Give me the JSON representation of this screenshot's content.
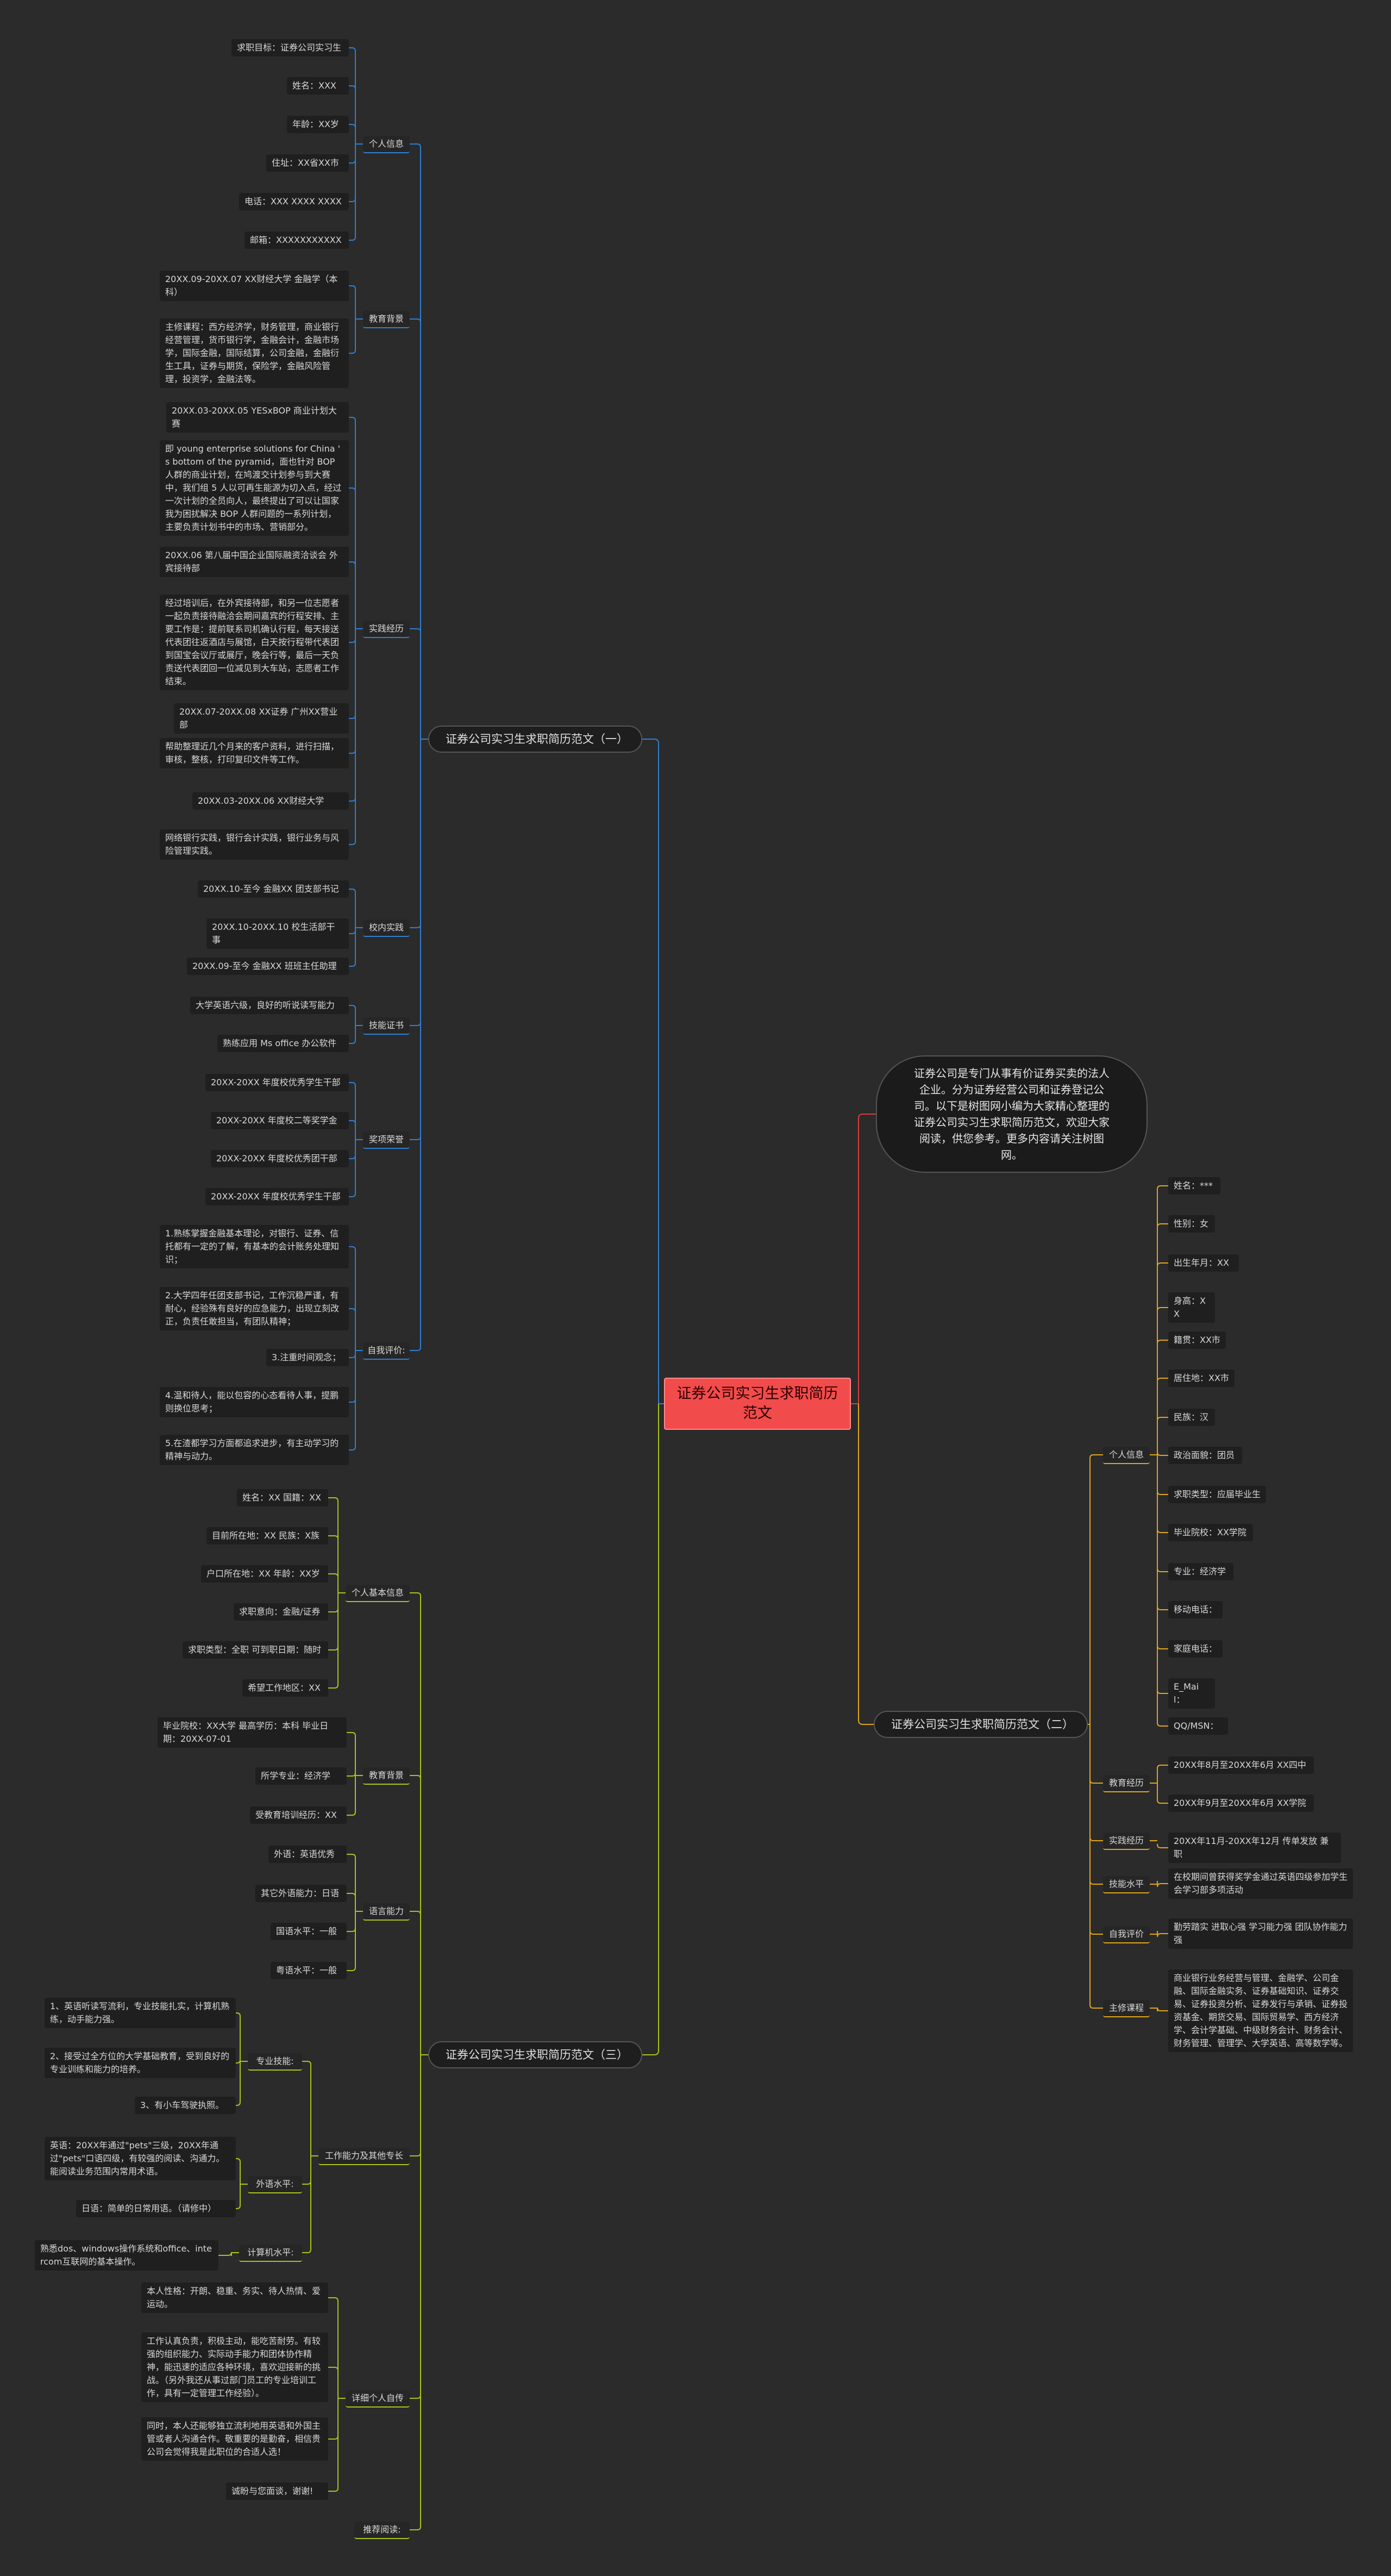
{
  "root": {
    "title": "证券公司实习生求职简历范文"
  },
  "intro": {
    "text": "证券公司是专门从事有价证券买卖的法人企业。分为证券经营公司和证券登记公司。以下是树图网小编为大家精心整理的证券公司实习生求职简历范文，欢迎大家阅读，供您参考。更多内容请关注树图网。"
  },
  "branches": {
    "b1": "证券公司实习生求职简历范文（一）",
    "b2": "证券公司实习生求职简历范文（二）",
    "b3": "证券公司实习生求职简历范文（三）"
  },
  "b1": {
    "personal": {
      "label": "个人信息",
      "items": [
        "求职目标：证券公司实习生",
        "姓名：XXX",
        "年龄：XX岁",
        "住址：XX省XX市",
        "电话：XXX XXXX XXXX",
        "邮箱：XXXXXXXXXXX"
      ]
    },
    "education": {
      "label": "教育背景",
      "items": [
        "20XX.09-20XX.07 XX财经大学 金融学（本科）",
        "主修课程：西方经济学，财务管理，商业银行经营管理，货币银行学，金融会计，金融市场学，国际金融，国际结算，公司金融，金融衍生工具，证券与期货，保险学，金融风险管理，投资学，金融法等。"
      ]
    },
    "practice": {
      "label": "实践经历",
      "items": [
        "20XX.03-20XX.05 YESxBOP 商业计划大赛",
        "即 young enterprise solutions for China ' s bottom of the pyramid，面也针对 BOP 人群的商业计划，在鸠渡交计划参与到大赛中，我们组 5 人以可再生能源为切入点，经过一次计划的全员向人，最终提出了可以让国家我为困扰解决 BOP 人群问题的一系列计划，主要负责计划书中的市场、营销部分。",
        "20XX.06 第八届中国企业国际融资洽谈会 外宾接待部",
        "经过培训后，在外宾接待部，和另一位志愿者一起负责接待融洽会期间嘉宾的行程安排、主要工作是：提前联系司机确认行程，每天接送代表团往返酒店与展馆，白天按行程带代表团到国宝会议厅或展厅，晚会行等，最后一天负责送代表团回一位减见到大车站，志愿者工作结束。",
        "20XX.07-20XX.08 XX证券 广州XX营业部",
        "帮助整理近几个月来的客户资料，进行扫描，审核，整核，打印复印文件等工作。",
        "20XX.03-20XX.06 XX财经大学",
        "网络银行实践，银行会计实践，银行业务与风险管理实践。"
      ]
    },
    "campus": {
      "label": "校内实践",
      "items": [
        "20XX.10-至今 金融XX 团支部书记",
        "20XX.10-20XX.10 校生活部干事",
        "20XX.09-至今 金融XX 班班主任助理"
      ]
    },
    "skills": {
      "label": "技能证书",
      "items": [
        "大学英语六级，良好的听说读写能力",
        "熟练应用 Ms office 办公软件"
      ]
    },
    "awards": {
      "label": "奖项荣誉",
      "items": [
        "20XX-20XX 年度校优秀学生干部",
        "20XX-20XX 年度校二等奖学金",
        "20XX-20XX 年度校优秀团干部",
        "20XX-20XX 年度校优秀学生干部"
      ]
    },
    "self": {
      "label": "自我评价:",
      "items": [
        "1.熟练掌握金融基本理论，对银行、证券、信托都有一定的了解，有基本的会计账务处理知识；",
        "2.大学四年任团支部书记，工作沉稳严谨，有耐心，经验殊有良好的应急能力，出现立刻改正，负责任敢担当，有团队精神；",
        "3.注重时间观念；",
        "4.温和待人，能以包容的心态看待人事，提鹏则换位思考；",
        "5.在渣都学习方面都追求进步，有主动学习的精神与动力。"
      ]
    }
  },
  "b2": {
    "personal": {
      "label": "个人信息",
      "items": [
        "姓名：***",
        "性别：女",
        "出生年月：XX",
        "身高：XX",
        "籍贯：XX市",
        "居住地：XX市",
        "民族：汉",
        "政治面貌：团员",
        "求职类型：应届毕业生",
        "毕业院校：XX学院",
        "专业：经济学",
        "移动电话：",
        "家庭电话：",
        "E_Mail：",
        "QQ/MSN："
      ]
    },
    "education": {
      "label": "教育经历",
      "items": [
        "20XX年8月至20XX年6月 XX四中",
        "20XX年9月至20XX年6月 XX学院"
      ]
    },
    "practice": {
      "label": "实践经历",
      "items": [
        "20XX年11月-20XX年12月 传单发放 兼职"
      ]
    },
    "skills": {
      "label": "技能水平",
      "items": [
        "在校期间曾获得奖学金通过英语四级参加学生会学习部多项活动"
      ]
    },
    "self": {
      "label": "自我评价",
      "items": [
        "勤劳踏实 进取心强 学习能力强 团队协作能力强"
      ]
    },
    "courses": {
      "label": "主修课程",
      "items": [
        "商业银行业务经营与管理、金融学、公司金融、国际金融实务、证券基础知识、证券交易、证券投资分析、证券发行与承销、证券投资基金、期货交易、国际贸易学、西方经济学、会计学基础、中级财务会计、财务会计、财务管理、管理学、大学英语、高等数学等。"
      ]
    }
  },
  "b3": {
    "personal": {
      "label": "个人基本信息",
      "items": [
        "姓名：XX 国籍：XX",
        "目前所在地：XX 民族：X族",
        "户口所在地：XX 年龄：XX岁",
        "求职意向：金融/证券",
        "求职类型：全职 可到职日期：随时",
        "希望工作地区：XX"
      ]
    },
    "education": {
      "label": "教育背景",
      "items": [
        "毕业院校：XX大学 最高学历：本科 毕业日期：20XX-07-01",
        "所学专业：经济学",
        "受教育培训经历：XX"
      ]
    },
    "language": {
      "label": "语言能力",
      "items": [
        "外语：英语优秀",
        "其它外语能力：日语",
        "国语水平：一般",
        "粤语水平：一般"
      ]
    },
    "work": {
      "label": "工作能力及其他专长",
      "professional": {
        "label": "专业技能:",
        "items": [
          "1、英语听读写流利，专业技能扎实，计算机熟练，动手能力强。",
          "2、接受过全方位的大学基础教育，受到良好的专业训练和能力的培养。",
          "3、有小车驾驶执照。"
        ]
      },
      "foreign": {
        "label": "外语水平:",
        "items": [
          "英语：20XX年通过\"pets\"三级，20XX年通过\"pets\"口语四级，有较强的阅读、沟通力。能阅读业务范围内常用术语。",
          "日语：简单的日常用语。（请修中）"
        ]
      },
      "computer": {
        "label": "计算机水平:",
        "items": [
          "熟悉dos、windows操作系统和office、intercom互联网的基本操作。"
        ]
      }
    },
    "evaluation": {
      "label": "详细个人自传",
      "items": [
        "本人性格：开朗、稳重、务实、待人热情、爱运动。",
        "工作认真负责，积极主动，能吃苦耐劳。有较强的组织能力、实际动手能力和团体协作精神，能迅速的适应各种环境，喜欢迎接新的挑战。（另外我还从事过部门员工的专业培训工作，具有一定管理工作经验）。",
        "同时，本人还能够独立流利地用英语和外国主管或者人沟通合作。敬重要的是勤奋，相信贵公司会觉得我是此职位的合适人选！",
        "诚盼与您面谈，谢谢!"
      ]
    },
    "recommend": {
      "label": "推荐阅读:"
    }
  },
  "colors": {
    "b1": "#2f7fd0",
    "b2": "#e0a51a",
    "b3": "#a6c41a",
    "intro": "#d93c3c",
    "rootFill": "#f24b4b"
  }
}
